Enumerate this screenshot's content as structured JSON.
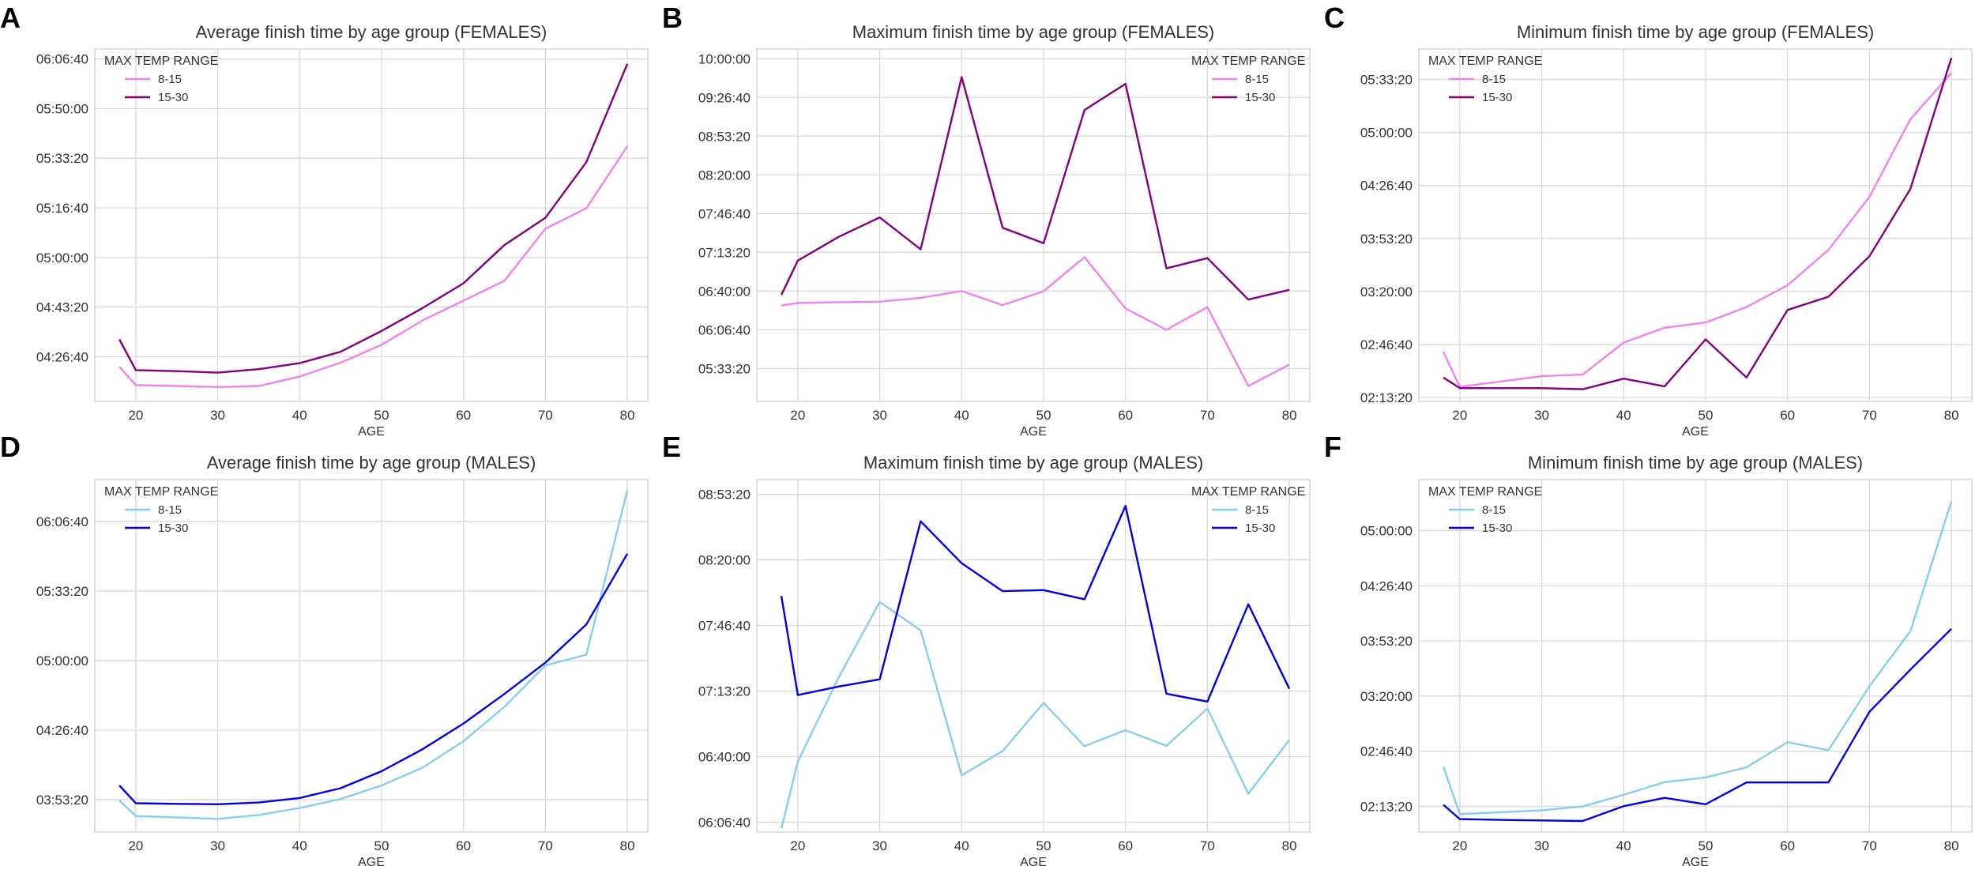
{
  "chart_data": [
    {
      "panel": "A",
      "type": "line",
      "title": "Average finish time by age group (FEMALES)",
      "xlabel": "AGE",
      "ylabel": "",
      "x": [
        18,
        20,
        25,
        30,
        35,
        40,
        45,
        50,
        55,
        60,
        65,
        70,
        75,
        80
      ],
      "xticks": [
        20,
        30,
        40,
        50,
        60,
        70,
        80
      ],
      "xlim": [
        15,
        82.5
      ],
      "yticks": [
        {
          "v": 16000,
          "label": "04:26:40"
        },
        {
          "v": 17000,
          "label": "04:43:20"
        },
        {
          "v": 18000,
          "label": "05:00:00"
        },
        {
          "v": 19000,
          "label": "05:16:40"
        },
        {
          "v": 20000,
          "label": "05:33:20"
        },
        {
          "v": 21000,
          "label": "05:50:00"
        },
        {
          "v": 22000,
          "label": "06:06:40"
        }
      ],
      "ylim": [
        15100,
        22200
      ],
      "legend": {
        "title": "MAX TEMP RANGE",
        "position": "top-left"
      },
      "series": [
        {
          "name": "8-15",
          "color": "#ee82ee",
          "values": [
            15800,
            15430,
            15410,
            15390,
            15410,
            15600,
            15880,
            16240,
            16730,
            17130,
            17530,
            18580,
            18990,
            20240
          ]
        },
        {
          "name": "15-30",
          "color": "#800080",
          "values": [
            16350,
            15730,
            15710,
            15680,
            15750,
            15870,
            16100,
            16520,
            16980,
            17480,
            18250,
            18800,
            19920,
            21900
          ]
        }
      ]
    },
    {
      "panel": "B",
      "type": "line",
      "title": "Maximum finish time by age group (FEMALES)",
      "xlabel": "AGE",
      "ylabel": "",
      "x": [
        18,
        20,
        25,
        30,
        35,
        40,
        45,
        50,
        55,
        60,
        65,
        70,
        75,
        80
      ],
      "xticks": [
        20,
        30,
        40,
        50,
        60,
        70,
        80
      ],
      "xlim": [
        15,
        82.5
      ],
      "yticks": [
        {
          "v": 20000,
          "label": "05:33:20"
        },
        {
          "v": 22000,
          "label": "06:06:40"
        },
        {
          "v": 24000,
          "label": "06:40:00"
        },
        {
          "v": 26000,
          "label": "07:13:20"
        },
        {
          "v": 28000,
          "label": "07:46:40"
        },
        {
          "v": 30000,
          "label": "08:20:00"
        },
        {
          "v": 32000,
          "label": "08:53:20"
        },
        {
          "v": 34000,
          "label": "09:26:40"
        },
        {
          "v": 36000,
          "label": "10:00:00"
        }
      ],
      "ylim": [
        18300,
        36500
      ],
      "legend": {
        "title": "MAX TEMP RANGE",
        "position": "top-right"
      },
      "series": [
        {
          "name": "8-15",
          "color": "#ee82ee",
          "values": [
            23250,
            23380,
            23420,
            23450,
            23650,
            24000,
            23270,
            23990,
            25750,
            23100,
            22000,
            23170,
            19100,
            20200
          ]
        },
        {
          "name": "15-30",
          "color": "#800080",
          "values": [
            23800,
            25570,
            26800,
            27800,
            26150,
            35050,
            27270,
            26470,
            33350,
            34700,
            25170,
            25700,
            23560,
            24060
          ]
        }
      ]
    },
    {
      "panel": "C",
      "type": "line",
      "title": "Minimum finish time by age group (FEMALES)",
      "xlabel": "AGE",
      "ylabel": "",
      "x": [
        18,
        20,
        25,
        30,
        35,
        40,
        45,
        50,
        55,
        60,
        65,
        70,
        75,
        80
      ],
      "xticks": [
        20,
        30,
        40,
        50,
        60,
        70,
        80
      ],
      "xlim": [
        15,
        82.5
      ],
      "yticks": [
        {
          "v": 8000,
          "label": "02:13:20"
        },
        {
          "v": 10000,
          "label": "02:46:40"
        },
        {
          "v": 12000,
          "label": "03:20:00"
        },
        {
          "v": 14000,
          "label": "03:53:20"
        },
        {
          "v": 16000,
          "label": "04:26:40"
        },
        {
          "v": 18000,
          "label": "05:00:00"
        },
        {
          "v": 20000,
          "label": "05:33:20"
        }
      ],
      "ylim": [
        7850,
        21150
      ],
      "legend": {
        "title": "MAX TEMP RANGE",
        "position": "top-left"
      },
      "series": [
        {
          "name": "8-15",
          "color": "#ee82ee",
          "values": [
            9720,
            8400,
            8600,
            8800,
            8860,
            10070,
            10630,
            10830,
            11410,
            12230,
            13570,
            15570,
            18500,
            20240
          ]
        },
        {
          "name": "15-30",
          "color": "#800080",
          "values": [
            8750,
            8350,
            8350,
            8350,
            8310,
            8710,
            8420,
            10190,
            8750,
            11300,
            11800,
            13330,
            15870,
            20810
          ]
        }
      ]
    },
    {
      "panel": "D",
      "type": "line",
      "title": "Average finish time by age group (MALES)",
      "xlabel": "AGE",
      "ylabel": "",
      "x": [
        18,
        20,
        25,
        30,
        35,
        40,
        45,
        50,
        55,
        60,
        65,
        70,
        75,
        80
      ],
      "xticks": [
        20,
        30,
        40,
        50,
        60,
        70,
        80
      ],
      "xlim": [
        15,
        82.5
      ],
      "yticks": [
        {
          "v": 14000,
          "label": "03:53:20"
        },
        {
          "v": 16000,
          "label": "04:26:40"
        },
        {
          "v": 18000,
          "label": "05:00:00"
        },
        {
          "v": 20000,
          "label": "05:33:20"
        },
        {
          "v": 22000,
          "label": "06:06:40"
        }
      ],
      "ylim": [
        13070,
        23200
      ],
      "legend": {
        "title": "MAX TEMP RANGE",
        "position": "top-left"
      },
      "series": [
        {
          "name": "8-15",
          "color": "#87ceeb",
          "values": [
            13980,
            13530,
            13490,
            13450,
            13560,
            13760,
            14020,
            14410,
            14920,
            15680,
            16670,
            17860,
            18170,
            22900
          ]
        },
        {
          "name": "15-30",
          "color": "#0000e0",
          "values": [
            14410,
            13900,
            13880,
            13870,
            13920,
            14050,
            14330,
            14820,
            15450,
            16190,
            17040,
            17940,
            19040,
            21070
          ]
        }
      ]
    },
    {
      "panel": "E",
      "type": "line",
      "title": "Maximum finish time by age group (MALES)",
      "xlabel": "AGE",
      "ylabel": "",
      "x": [
        18,
        20,
        25,
        30,
        35,
        40,
        45,
        50,
        55,
        60,
        65,
        70,
        75,
        80
      ],
      "xticks": [
        20,
        30,
        40,
        50,
        60,
        70,
        80
      ],
      "xlim": [
        15,
        82.5
      ],
      "yticks": [
        {
          "v": 22000,
          "label": "06:06:40"
        },
        {
          "v": 24000,
          "label": "06:40:00"
        },
        {
          "v": 26000,
          "label": "07:13:20"
        },
        {
          "v": 28000,
          "label": "07:46:40"
        },
        {
          "v": 30000,
          "label": "08:20:00"
        },
        {
          "v": 32000,
          "label": "08:53:20"
        }
      ],
      "ylim": [
        21700,
        32450
      ],
      "legend": {
        "title": "MAX TEMP RANGE",
        "position": "top-right"
      },
      "series": [
        {
          "name": "8-15",
          "color": "#87ceeb",
          "values": [
            21810,
            23850,
            26420,
            28720,
            27850,
            23430,
            24170,
            25640,
            24320,
            24810,
            24330,
            25470,
            22870,
            24510
          ]
        },
        {
          "name": "15-30",
          "color": "#0000e0",
          "values": [
            28900,
            25880,
            26140,
            26360,
            31180,
            29900,
            29050,
            29080,
            28800,
            31650,
            25920,
            25680,
            28650,
            26070
          ]
        }
      ]
    },
    {
      "panel": "F",
      "type": "line",
      "title": "Minimum finish time by age group (MALES)",
      "xlabel": "AGE",
      "ylabel": "",
      "x": [
        18,
        20,
        25,
        30,
        35,
        40,
        45,
        50,
        55,
        60,
        65,
        70,
        75,
        80
      ],
      "xticks": [
        20,
        30,
        40,
        50,
        60,
        70,
        80
      ],
      "xlim": [
        15,
        82.5
      ],
      "yticks": [
        {
          "v": 8000,
          "label": "02:13:20"
        },
        {
          "v": 10000,
          "label": "02:46:40"
        },
        {
          "v": 12000,
          "label": "03:20:00"
        },
        {
          "v": 14000,
          "label": "03:53:20"
        },
        {
          "v": 16000,
          "label": "04:26:40"
        },
        {
          "v": 18000,
          "label": "05:00:00"
        }
      ],
      "ylim": [
        7070,
        19850
      ],
      "legend": {
        "title": "MAX TEMP RANGE",
        "position": "top-left"
      },
      "series": [
        {
          "name": "8-15",
          "color": "#87ceeb",
          "values": [
            9440,
            7720,
            7790,
            7860,
            8000,
            8420,
            8880,
            9050,
            9420,
            10330,
            10040,
            12360,
            14350,
            19070
          ]
        },
        {
          "name": "15-30",
          "color": "#0000e0",
          "values": [
            8060,
            7540,
            7510,
            7490,
            7470,
            8010,
            8310,
            8080,
            8870,
            8870,
            8870,
            11430,
            12960,
            14440
          ]
        }
      ]
    }
  ]
}
